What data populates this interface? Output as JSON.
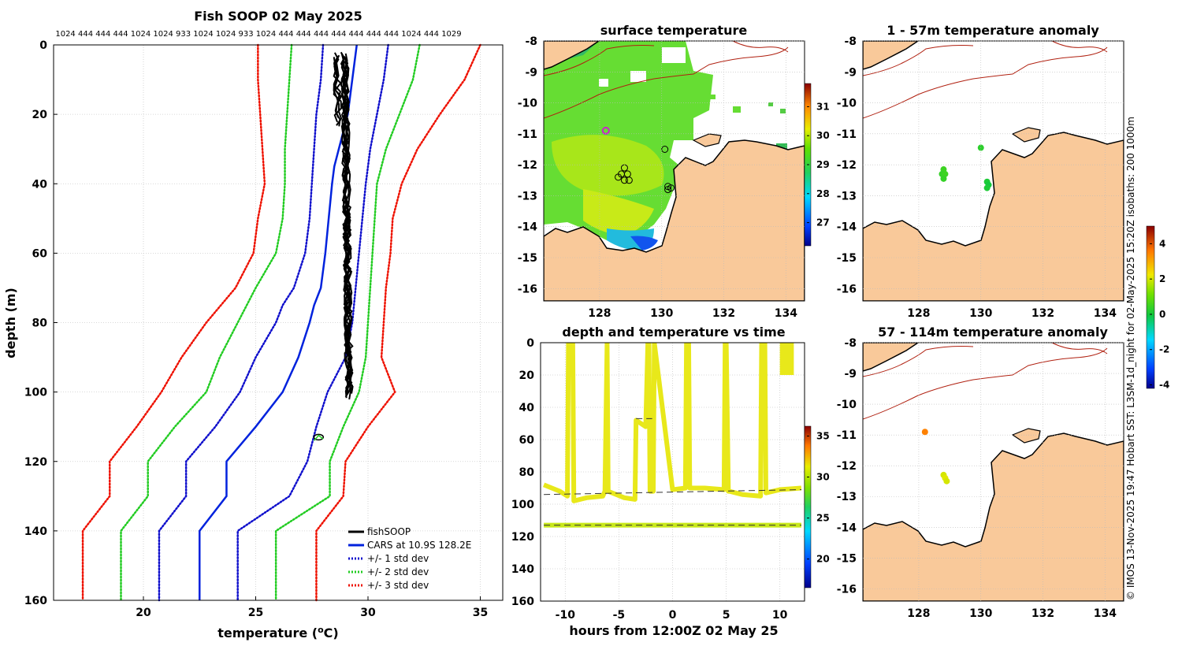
{
  "colors": {
    "fishsoop": "#000000",
    "cars": "#0022dd",
    "std1": "#1010cc",
    "std2": "#22cc22",
    "std3": "#ee1100",
    "land": "#f9c99a",
    "isobath": "#b02010",
    "track": "#e8e81a",
    "grid": "#cccccc"
  },
  "chart_data": [
    {
      "id": "profile",
      "type": "line",
      "title": "Fish SOOP 02 May 2025",
      "header_numbers": "1024 444 444 444 1024 1024 933 1024 1024 933 1024 444 444 444 444 444 444 444 1024 444 1029",
      "xlabel_pre": "temperature (",
      "xlabel_sup": "o",
      "xlabel_post": "C)",
      "ylabel": "depth (m)",
      "xlim": [
        16,
        36
      ],
      "ylim": [
        0,
        160
      ],
      "y_reversed": true,
      "xticks": [
        20,
        25,
        30,
        35
      ],
      "yticks": [
        0,
        20,
        40,
        60,
        80,
        100,
        120,
        140,
        160
      ],
      "grid": true,
      "legend": {
        "position": "bottom-right",
        "entries": [
          "fishSOOP",
          "CARS at 10.9S 128.2E",
          "+/- 1 std dev",
          "+/- 2 std dev",
          "+/- 3 std dev"
        ]
      },
      "series": [
        {
          "name": "CARS mean",
          "style": "solid",
          "color_key": "cars",
          "depth": [
            0,
            5,
            10,
            15,
            20,
            25,
            30,
            35,
            40,
            50,
            60,
            70,
            75,
            80,
            90,
            100,
            110,
            120,
            130,
            140,
            160
          ],
          "temp": [
            29.5,
            29.4,
            29.3,
            29.2,
            29.1,
            28.9,
            28.7,
            28.5,
            28.4,
            28.25,
            28.1,
            27.9,
            27.6,
            27.4,
            26.9,
            26.2,
            25.0,
            23.7,
            23.7,
            22.5,
            22.5
          ]
        },
        {
          "name": "+1 std dev",
          "style": "dotted",
          "color_key": "std1",
          "depth": [
            0,
            10,
            20,
            30,
            40,
            50,
            60,
            70,
            80,
            90,
            100,
            110,
            120,
            130,
            140,
            160
          ],
          "temp": [
            30.9,
            30.7,
            30.4,
            30.1,
            29.9,
            29.75,
            29.6,
            29.45,
            29.3,
            29.0,
            28.2,
            27.7,
            27.3,
            26.5,
            24.2,
            24.2
          ]
        },
        {
          "name": "-1 std dev",
          "style": "dotted",
          "color_key": "std1",
          "depth": [
            0,
            10,
            20,
            30,
            40,
            50,
            60,
            70,
            75,
            80,
            90,
            100,
            110,
            120,
            130,
            140,
            160
          ],
          "temp": [
            28.0,
            27.9,
            27.7,
            27.6,
            27.5,
            27.4,
            27.2,
            26.7,
            26.2,
            25.9,
            25.0,
            24.3,
            23.2,
            21.9,
            21.9,
            20.7,
            20.7
          ]
        },
        {
          "name": "+2 std dev",
          "style": "dotted",
          "color_key": "std2",
          "depth": [
            0,
            10,
            20,
            30,
            40,
            50,
            60,
            70,
            80,
            90,
            100,
            110,
            120,
            130,
            140,
            160
          ],
          "temp": [
            32.3,
            32.0,
            31.4,
            30.8,
            30.4,
            30.3,
            30.2,
            30.1,
            30.0,
            29.9,
            29.6,
            28.9,
            28.3,
            28.3,
            25.9,
            25.9
          ]
        },
        {
          "name": "-2 std dev",
          "style": "dotted",
          "color_key": "std2",
          "depth": [
            0,
            10,
            20,
            30,
            40,
            50,
            60,
            70,
            80,
            90,
            100,
            110,
            120,
            130,
            140,
            160
          ],
          "temp": [
            26.6,
            26.5,
            26.4,
            26.3,
            26.3,
            26.2,
            25.9,
            25.0,
            24.2,
            23.4,
            22.8,
            21.4,
            20.2,
            20.2,
            19.0,
            19.0
          ]
        },
        {
          "name": "+3 std dev",
          "style": "dotted",
          "color_key": "std3",
          "depth": [
            0,
            10,
            20,
            30,
            40,
            50,
            60,
            70,
            80,
            90,
            100,
            110,
            120,
            130,
            140,
            160
          ],
          "temp": [
            35.0,
            34.3,
            33.2,
            32.2,
            31.5,
            31.1,
            31.0,
            30.8,
            30.7,
            30.6,
            31.2,
            30.0,
            29.0,
            28.9,
            27.7,
            27.7
          ]
        },
        {
          "name": "-3 std dev",
          "style": "dotted",
          "color_key": "std3",
          "depth": [
            0,
            10,
            20,
            30,
            40,
            50,
            60,
            70,
            80,
            90,
            100,
            110,
            120,
            130,
            140,
            160
          ],
          "temp": [
            25.1,
            25.1,
            25.2,
            25.3,
            25.4,
            25.1,
            24.9,
            24.1,
            22.8,
            21.7,
            20.8,
            19.7,
            18.5,
            18.5,
            17.3,
            17.3
          ]
        }
      ],
      "fishsoop": {
        "upper": {
          "depth": [
            2,
            103
          ],
          "temp_range": [
            28.8,
            29.2
          ]
        },
        "deep": {
          "depth": [
            112,
            114
          ],
          "temp": [
            27.7,
            27.9
          ]
        }
      }
    },
    {
      "id": "sst",
      "type": "heatmap",
      "title": "surface temperature",
      "xlim": [
        126.2,
        134.6
      ],
      "ylim": [
        -16.4,
        -8
      ],
      "xticks": [
        128,
        130,
        132,
        134
      ],
      "yticks": [
        -8,
        -9,
        -10,
        -11,
        -12,
        -13,
        -14,
        -15,
        -16
      ],
      "colorbar": {
        "min": 26.2,
        "max": 31.8,
        "ticks": [
          27,
          28,
          29,
          30,
          31
        ]
      },
      "stations": [
        [
          130.1,
          -11.5
        ],
        [
          128.8,
          -12.1
        ],
        [
          128.7,
          -12.3
        ],
        [
          128.9,
          -12.3
        ],
        [
          128.6,
          -12.4
        ],
        [
          128.8,
          -12.5
        ],
        [
          128.95,
          -12.5
        ],
        [
          130.2,
          -12.7
        ],
        [
          130.2,
          -12.8
        ],
        [
          130.3,
          -12.75
        ]
      ],
      "current_position": [
        128.2,
        -10.9
      ]
    },
    {
      "id": "anom1",
      "type": "scatter",
      "title": "1 - 57m temperature anomaly",
      "xlim": [
        126.2,
        134.6
      ],
      "ylim": [
        -16.4,
        -8
      ],
      "xticks": [
        128,
        130,
        132,
        134
      ],
      "yticks": [
        -8,
        -9,
        -10,
        -11,
        -12,
        -13,
        -14,
        -15,
        -16
      ],
      "points": [
        {
          "lon": 130.0,
          "lat": -11.45,
          "anom": 0.3
        },
        {
          "lon": 128.8,
          "lat": -12.15,
          "anom": 0.5
        },
        {
          "lon": 128.75,
          "lat": -12.3,
          "anom": 0.4
        },
        {
          "lon": 128.85,
          "lat": -12.3,
          "anom": 0.5
        },
        {
          "lon": 128.8,
          "lat": -12.45,
          "anom": 0.4
        },
        {
          "lon": 130.2,
          "lat": -12.55,
          "anom": 0.1
        },
        {
          "lon": 130.25,
          "lat": -12.65,
          "anom": 0.0
        },
        {
          "lon": 130.2,
          "lat": -12.75,
          "anom": 0.1
        }
      ]
    },
    {
      "id": "anom2",
      "type": "scatter",
      "title": "57 - 114m temperature anomaly",
      "xlim": [
        126.2,
        134.6
      ],
      "ylim": [
        -16.4,
        -8
      ],
      "xticks": [
        128,
        130,
        132,
        134
      ],
      "yticks": [
        -8,
        -9,
        -10,
        -11,
        -12,
        -13,
        -14,
        -15,
        -16
      ],
      "colorbar": {
        "min": -4.2,
        "max": 5.0,
        "ticks": [
          -4,
          -2,
          0,
          2,
          4
        ]
      },
      "points": [
        {
          "lon": 128.2,
          "lat": -10.9,
          "anom": 3.5
        },
        {
          "lon": 128.8,
          "lat": -12.3,
          "anom": 2.0
        },
        {
          "lon": 128.85,
          "lat": -12.4,
          "anom": 2.1
        },
        {
          "lon": 128.9,
          "lat": -12.5,
          "anom": 2.0
        }
      ]
    },
    {
      "id": "timeseries",
      "type": "line",
      "title": "depth and temperature vs time",
      "xlabel": "hours from 12:00Z 02 May 25",
      "xlim": [
        -12.3,
        12.3
      ],
      "ylim": [
        0,
        160
      ],
      "y_reversed": true,
      "xticks": [
        -10,
        -5,
        0,
        5,
        10
      ],
      "yticks": [
        0,
        20,
        40,
        60,
        80,
        100,
        120,
        140,
        160
      ],
      "colorbar": {
        "min": 16.5,
        "max": 36.2,
        "ticks": [
          20,
          25,
          30,
          35
        ]
      },
      "track": {
        "hours": [
          -12.0,
          -10.5,
          -9.8,
          -9.7,
          -9.3,
          -9.2,
          -8.0,
          -6.5,
          -6.3,
          -6.1,
          -6.0,
          -4.5,
          -3.5,
          -3.4,
          -2.5,
          -2.3,
          -2.2,
          -2.1,
          -1.8,
          -1.7,
          0.0,
          1.2,
          1.3,
          1.5,
          1.6,
          3.0,
          4.8,
          4.9,
          5.0,
          5.2,
          5.3,
          6.5,
          8.2,
          8.3,
          8.6,
          8.7,
          10.0,
          12.0
        ],
        "depth": [
          88,
          92,
          95,
          0,
          0,
          98,
          96,
          95,
          92,
          0,
          92,
          96,
          97,
          48,
          52,
          0,
          0,
          92,
          92,
          0,
          91,
          90,
          0,
          0,
          90,
          90,
          91,
          0,
          0,
          92,
          92,
          94,
          95,
          0,
          0,
          93,
          91,
          90
        ]
      },
      "markers": [
        {
          "hours_from": -3.4,
          "hours_to": -1.9,
          "depth": 47
        },
        {
          "hours_from": -12.0,
          "hours_to": 12.0,
          "depth_start": 94,
          "depth_end": 91
        },
        {
          "hours_from": -12.0,
          "hours_to": 12.0,
          "depth_start": 113,
          "depth_end": 113
        }
      ],
      "deep_track": {
        "hours": [
          -12.0,
          12.0
        ],
        "depth": [
          113,
          113
        ]
      },
      "last_surface": {
        "hours": [
          10.0,
          11.3
        ],
        "depth": [
          0,
          20
        ]
      }
    }
  ],
  "footnote": "© IMOS 13-Nov-2025 19:47 Hobart SST: L3SM-1d_night for 02-May-2025 15:20Z isobaths: 200  1000m"
}
